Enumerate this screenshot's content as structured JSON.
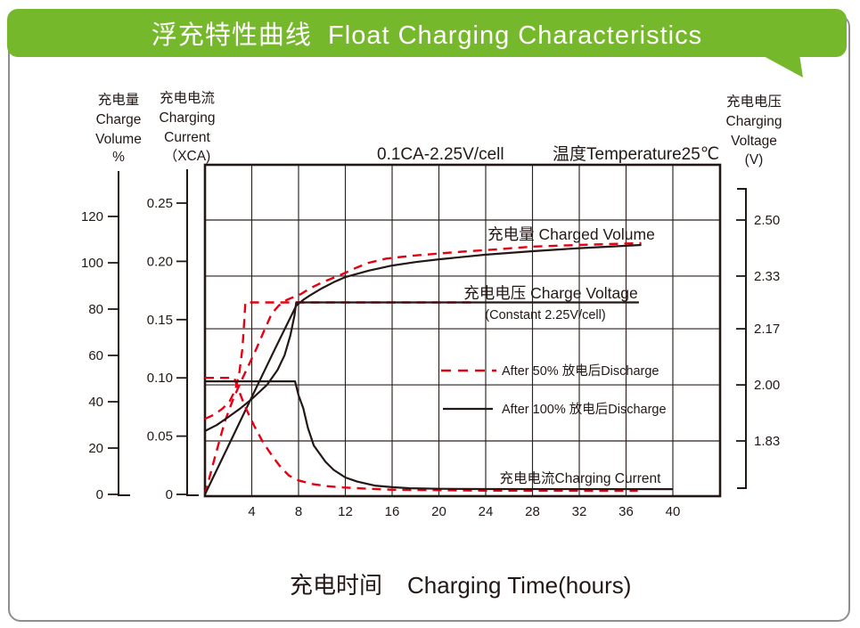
{
  "banner": {
    "title": "浮充特性曲线  Float Charging Characteristics",
    "color": "#76b82b",
    "text_color": "#ffffff"
  },
  "condition": {
    "left": "0.1CA-2.25V/cell",
    "right": "温度Temperature25℃"
  },
  "x_axis_title": {
    "zh": "充电时间",
    "en": "Charging Time(hours)"
  },
  "chart_data": {
    "type": "line",
    "title": "0.1CA-2.25V/cell 温度Temperature25℃",
    "grid": true,
    "legend_position": "inside-right",
    "x_axis": {
      "label": "充电时间 Charging Time(hours)",
      "unit": "hours",
      "range": [
        0,
        44
      ],
      "ticks": [
        4,
        8,
        12,
        16,
        20,
        24,
        28,
        32,
        36,
        40
      ]
    },
    "axes": {
      "volume": {
        "title_lines": [
          "充电量",
          "Charge",
          "Volume",
          "%"
        ],
        "range": [
          0,
          130
        ],
        "ticks": [
          0,
          20,
          40,
          60,
          80,
          100,
          120
        ],
        "tick_labels": [
          "0",
          "20",
          "40",
          "60",
          "80",
          "100",
          "120"
        ]
      },
      "current": {
        "title_lines": [
          "充电电流",
          "Charging",
          "Current",
          "（XCA)"
        ],
        "range": [
          0,
          0.27
        ],
        "ticks": [
          0,
          0.05,
          0.1,
          0.15,
          0.2,
          0.25
        ],
        "tick_labels": [
          "0",
          "0.05",
          "0.10",
          "0.15",
          "0.20",
          "0.25"
        ]
      },
      "voltage": {
        "title_lines": [
          "充电电压",
          "Charging",
          "Voltage",
          "(V)"
        ],
        "range": [
          1.66,
          2.6
        ],
        "ticks": [
          2.5,
          2.33,
          2.17,
          2.0,
          1.83
        ],
        "tick_labels": [
          "2.50",
          "2.33",
          "2.17",
          "2.00",
          "1.83"
        ]
      }
    },
    "labels": {
      "charged_volume": "充电量 Charged Volume",
      "charge_voltage": "充电电压 Charge Voltage",
      "charge_voltage_sub": "(Constant 2.25V/cell)",
      "charging_current": "充电电流Charging Current"
    },
    "legend": [
      {
        "label": "After 50% 放电后Discharge",
        "style": "red-dashed",
        "color": "#e60012"
      },
      {
        "label": "After 100% 放电后Discharge",
        "style": "black-solid",
        "color": "#231815"
      }
    ],
    "series": [
      {
        "name": "charged-volume-after-50pct-discharge",
        "axis": "volume",
        "style": "red-dashed",
        "points": [
          [
            0,
            0
          ],
          [
            0.9,
            17
          ],
          [
            1.7,
            31.5
          ],
          [
            2.4,
            41
          ],
          [
            3.1,
            49
          ],
          [
            3.8,
            56.5
          ],
          [
            4.4,
            63
          ],
          [
            5,
            70
          ],
          [
            5.7,
            78
          ],
          [
            6.3,
            81.5
          ],
          [
            7,
            84
          ],
          [
            8.2,
            86.5
          ],
          [
            9,
            89
          ],
          [
            10,
            91.5
          ],
          [
            11.7,
            95
          ],
          [
            13,
            98
          ],
          [
            14,
            100
          ],
          [
            15.5,
            101.8
          ],
          [
            17.6,
            103
          ],
          [
            20,
            104
          ],
          [
            22,
            104.8
          ],
          [
            25,
            105.8
          ],
          [
            28,
            107
          ],
          [
            32,
            107.7
          ],
          [
            37.3,
            108.5
          ]
        ]
      },
      {
        "name": "charged-volume-after-100pct-discharge",
        "axis": "volume",
        "style": "black-solid",
        "points": [
          [
            0,
            0
          ],
          [
            2,
            21
          ],
          [
            4,
            42
          ],
          [
            6,
            63
          ],
          [
            7.8,
            81.5
          ],
          [
            8.4,
            84
          ],
          [
            9,
            86
          ],
          [
            10,
            89
          ],
          [
            11,
            91.6
          ],
          [
            12,
            93.8
          ],
          [
            14,
            96.6
          ],
          [
            16,
            98.8
          ],
          [
            18,
            100.3
          ],
          [
            20,
            101.5
          ],
          [
            24,
            103.5
          ],
          [
            28,
            105
          ],
          [
            32,
            106.3
          ],
          [
            37.3,
            107.7
          ]
        ]
      },
      {
        "name": "charge-voltage-after-50pct-discharge",
        "axis": "voltage",
        "style": "red-dashed",
        "points": [
          [
            0,
            1.897
          ],
          [
            0.8,
            1.91
          ],
          [
            1.5,
            1.928
          ],
          [
            2.1,
            1.95
          ],
          [
            2.6,
            1.985
          ],
          [
            2.95,
            2.04
          ],
          [
            3.2,
            2.11
          ],
          [
            3.35,
            2.19
          ],
          [
            3.45,
            2.25
          ],
          [
            23,
            2.25
          ]
        ]
      },
      {
        "name": "charge-voltage-after-100pct-discharge",
        "axis": "voltage",
        "style": "black-solid",
        "points": [
          [
            0,
            1.86
          ],
          [
            1,
            1.878
          ],
          [
            1.9,
            1.9
          ],
          [
            3,
            1.928
          ],
          [
            4,
            1.957
          ],
          [
            5.3,
            2.0
          ],
          [
            6.2,
            2.045
          ],
          [
            6.8,
            2.09
          ],
          [
            7.3,
            2.15
          ],
          [
            7.65,
            2.21
          ],
          [
            7.8,
            2.25
          ],
          [
            37.1,
            2.25
          ]
        ]
      },
      {
        "name": "charging-current-after-50pct-discharge",
        "axis": "current",
        "style": "red-dashed",
        "points": [
          [
            0,
            0.1
          ],
          [
            2.5,
            0.1
          ],
          [
            2.9,
            0.089
          ],
          [
            3.4,
            0.076
          ],
          [
            4.2,
            0.059
          ],
          [
            5,
            0.044
          ],
          [
            5.9,
            0.031
          ],
          [
            6.5,
            0.023
          ],
          [
            7.2,
            0.016
          ],
          [
            8,
            0.012
          ],
          [
            9.1,
            0.009
          ],
          [
            10.5,
            0.007
          ],
          [
            11.8,
            0.006
          ],
          [
            14,
            0.0048
          ],
          [
            16,
            0.004
          ],
          [
            24,
            0.0032
          ],
          [
            37,
            0.003
          ]
        ]
      },
      {
        "name": "charging-current-after-100pct-discharge",
        "axis": "current",
        "style": "black-solid",
        "points": [
          [
            0,
            0.097
          ],
          [
            7.7,
            0.097
          ],
          [
            8,
            0.085
          ],
          [
            8.4,
            0.074
          ],
          [
            8.8,
            0.057
          ],
          [
            9.3,
            0.042
          ],
          [
            10.3,
            0.028
          ],
          [
            11,
            0.021
          ],
          [
            12,
            0.0145
          ],
          [
            13,
            0.011
          ],
          [
            14.5,
            0.0076
          ],
          [
            16,
            0.0062
          ],
          [
            17.5,
            0.0053
          ],
          [
            20,
            0.0048
          ],
          [
            23.6,
            0.0046
          ],
          [
            40,
            0.0045
          ]
        ]
      }
    ]
  }
}
